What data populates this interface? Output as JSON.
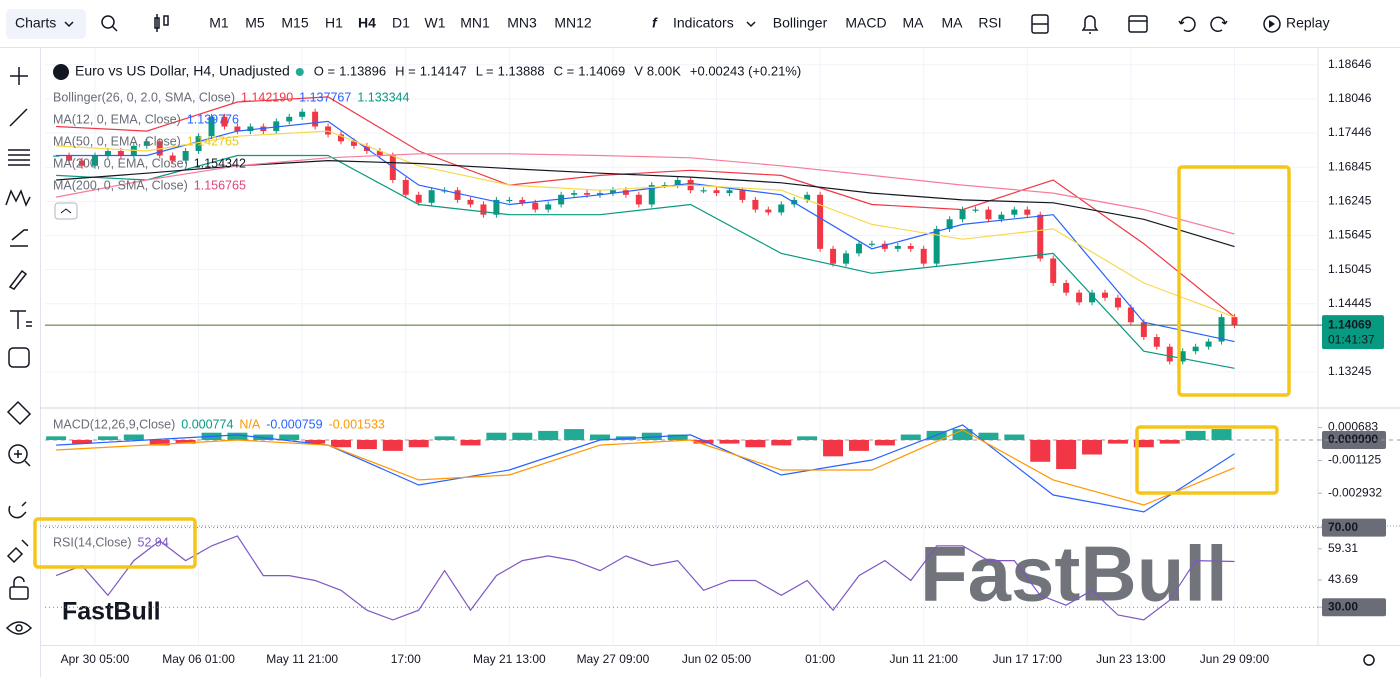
{
  "toolbar": {
    "charts": "Charts",
    "timeframes": [
      "M1",
      "M5",
      "M15",
      "H1",
      "H4",
      "D1",
      "W1",
      "MN1",
      "MN3",
      "MN12"
    ],
    "selected_timeframe_index": 4,
    "indicators": "Indicators",
    "shortcuts": [
      "Bollinger",
      "MACD",
      "MA",
      "MA",
      "RSI"
    ],
    "replay": "Replay"
  },
  "legend": {
    "badge": "FB",
    "symbol": "Euro vs US Dollar, H4, Unadjusted",
    "ohlc": [
      {
        "label": "O =",
        "value": "1.13896"
      },
      {
        "label": "H =",
        "value": "1.14147"
      },
      {
        "label": "L =",
        "value": "1.13888"
      },
      {
        "label": "C =",
        "value": "1.14069"
      },
      {
        "label": "V",
        "value": "8.00K"
      }
    ],
    "change": "+0.00243 (+0.21%)"
  },
  "indicators": [
    {
      "label": "Bollinger(26, 0, 2.0, SMA, Close)",
      "values": [
        "1.142190",
        "1.137767",
        "1.133344"
      ],
      "colors": [
        "#f23645",
        "#2962ff",
        "#089981"
      ]
    },
    {
      "label": "MA(12, 0, EMA, Close)",
      "values": [
        "1.139776"
      ],
      "colors": [
        "#2962ff"
      ]
    },
    {
      "label": "MA(50, 0, EMA, Close)",
      "values": [
        "1.142765"
      ],
      "colors": [
        "#e8c81a"
      ]
    },
    {
      "label": "MA(200, 0, EMA, Close)",
      "values": [
        "1.154342"
      ],
      "colors": [
        "#131722"
      ]
    },
    {
      "label": "MA(200, 0, SMA, Close)",
      "values": [
        "1.156765"
      ],
      "colors": [
        "#e0457b"
      ]
    },
    {
      "label": "MACD(12,26,9,Close)",
      "values": [
        "0.000774",
        "N/A",
        "-0.000759",
        "-0.001533"
      ],
      "colors": [
        "#089981",
        "#ff9800",
        "#2962ff",
        "#ff9800"
      ]
    },
    {
      "label": "RSI(14,Close)",
      "values": [
        "52.94"
      ],
      "colors": [
        "#7e57c2"
      ]
    }
  ],
  "watermark": "FastBull",
  "chart_data": [
    {
      "type": "candlestick",
      "up_color": "#089981",
      "down_color": "#f23645",
      "closes": [
        1.1705,
        1.1696,
        1.1687,
        1.1705,
        1.1713,
        1.1705,
        1.1722,
        1.173,
        1.1705,
        1.1696,
        1.1713,
        1.1739,
        1.1773,
        1.1756,
        1.1748,
        1.1756,
        1.1748,
        1.1765,
        1.1773,
        1.1782,
        1.1756,
        1.1742,
        1.173,
        1.1722,
        1.1713,
        1.1705,
        1.1662,
        1.1636,
        1.1622,
        1.1644,
        1.1644,
        1.1627,
        1.1619,
        1.1601,
        1.1627,
        1.1627,
        1.1622,
        1.161,
        1.1619,
        1.1636,
        1.1639,
        1.1636,
        1.1639,
        1.1644,
        1.1636,
        1.1619,
        1.1653,
        1.1653,
        1.1662,
        1.1644,
        1.1644,
        1.1639,
        1.1644,
        1.1627,
        1.161,
        1.1605,
        1.1619,
        1.1627,
        1.1636,
        1.1541,
        1.1515,
        1.1533,
        1.155,
        1.155,
        1.1541,
        1.1546,
        1.1541,
        1.1515,
        1.1576,
        1.1593,
        1.161,
        1.161,
        1.1593,
        1.1601,
        1.161,
        1.1601,
        1.1524,
        1.1481,
        1.1464,
        1.1447,
        1.1464,
        1.1455,
        1.1438,
        1.1412,
        1.1386,
        1.1369,
        1.1343,
        1.1361,
        1.1369,
        1.1378,
        1.1421,
        1.14069
      ],
      "xlim": [
        -0.86,
        97.45
      ],
      "xticks": [
        {
          "value": 3,
          "label": "Apr 30 05:00"
        },
        {
          "value": 11,
          "label": "May 06 01:00"
        },
        {
          "value": 19,
          "label": "May 11 21:00"
        },
        {
          "value": 27,
          "label": "17:00"
        },
        {
          "value": 35,
          "label": "May 21 13:00"
        },
        {
          "value": 43,
          "label": "May 27 09:00"
        },
        {
          "value": 51,
          "label": "Jun 02 05:00"
        },
        {
          "value": 59,
          "label": "01:00"
        },
        {
          "value": 67,
          "label": "Jun 11 21:00"
        },
        {
          "value": 75,
          "label": "Jun 17 17:00"
        },
        {
          "value": 83,
          "label": "Jun 23 13:00"
        },
        {
          "value": 91,
          "label": "Jun 29 09:00"
        }
      ],
      "ylim": [
        1.1263,
        1.1894
      ],
      "yticks": [
        1.18646,
        1.18046,
        1.17446,
        1.16845,
        1.16245,
        1.15645,
        1.15045,
        1.14445,
        1.13245
      ],
      "last_price": 1.14069,
      "countdown": "01:41:37",
      "series": [
        {
          "color": "#f23645",
          "x": [
            0,
            7,
            14,
            21,
            28,
            35,
            42,
            49,
            56,
            63,
            70,
            77,
            84,
            91
          ],
          "values": [
            1.1756,
            1.1748,
            1.1799,
            1.1808,
            1.1713,
            1.1653,
            1.167,
            1.1679,
            1.167,
            1.1619,
            1.161,
            1.1662,
            1.155,
            1.1421
          ]
        },
        {
          "color": "#089981",
          "x": [
            0,
            7,
            14,
            21,
            28,
            35,
            42,
            49,
            56,
            63,
            70,
            77,
            84,
            91
          ],
          "values": [
            1.167,
            1.1662,
            1.1705,
            1.1705,
            1.1619,
            1.1601,
            1.1601,
            1.1619,
            1.1533,
            1.1498,
            1.1515,
            1.1533,
            1.1361,
            1.1331
          ]
        },
        {
          "color": "#2962ff",
          "x": [
            0,
            7,
            14,
            21,
            28,
            35,
            42,
            49,
            56,
            63,
            70,
            77,
            84,
            91
          ],
          "values": [
            1.1705,
            1.1705,
            1.1748,
            1.1765,
            1.1653,
            1.1619,
            1.1636,
            1.1656,
            1.1636,
            1.1541,
            1.1584,
            1.1601,
            1.1412,
            1.1378
          ]
        },
        {
          "color": "#f7d94c",
          "x": [
            0,
            7,
            14,
            21,
            28,
            35,
            42,
            49,
            56,
            63,
            70,
            77,
            84,
            91
          ],
          "values": [
            1.1722,
            1.1713,
            1.1739,
            1.1748,
            1.1687,
            1.1653,
            1.1644,
            1.1653,
            1.1644,
            1.1584,
            1.1558,
            1.1576,
            1.1481,
            1.1421
          ]
        },
        {
          "color": "#131722",
          "x": [
            0,
            7,
            14,
            21,
            28,
            35,
            42,
            49,
            56,
            63,
            70,
            77,
            84,
            91
          ],
          "values": [
            1.1662,
            1.1674,
            1.1687,
            1.1696,
            1.1691,
            1.1682,
            1.1674,
            1.1667,
            1.1657,
            1.1639,
            1.1627,
            1.1622,
            1.1593,
            1.1545
          ]
        },
        {
          "color": "#f77c9a",
          "x": [
            0,
            7,
            14,
            21,
            28,
            35,
            42,
            49,
            56,
            63,
            70,
            77,
            84,
            91
          ],
          "values": [
            1.1632,
            1.1662,
            1.1687,
            1.1701,
            1.1708,
            1.1708,
            1.1705,
            1.1701,
            1.1687,
            1.167,
            1.1653,
            1.1639,
            1.161,
            1.1567
          ]
        }
      ]
    },
    {
      "type": "bar",
      "up_color": "#22ab94",
      "down_color": "#f23645",
      "x": [
        0,
        2,
        4,
        6,
        8,
        10,
        12,
        14,
        16,
        18,
        20,
        22,
        24,
        26,
        28,
        30,
        32,
        34,
        36,
        38,
        40,
        42,
        44,
        46,
        48,
        50,
        52,
        54,
        56,
        58,
        60,
        62,
        64,
        66,
        68,
        70,
        72,
        74,
        76,
        78,
        80,
        82,
        84,
        86,
        88,
        90
      ],
      "values": [
        0.0002,
        -0.0002,
        0.0002,
        0.0003,
        -0.0003,
        -0.0002,
        0.0004,
        0.0004,
        0.0003,
        0.0003,
        -0.0002,
        -0.0004,
        -0.0005,
        -0.0006,
        -0.0004,
        0.0002,
        -0.0003,
        0.0004,
        0.0004,
        0.0005,
        0.0006,
        0.0003,
        0.0002,
        0.0004,
        0.0003,
        -0.0002,
        -0.0002,
        -0.0004,
        -0.0003,
        0.0002,
        -0.0009,
        -0.0006,
        -0.0003,
        0.0003,
        0.0005,
        0.0006,
        0.0004,
        0.0003,
        -0.0012,
        -0.0016,
        -0.0008,
        -0.0002,
        -0.0004,
        -0.0002,
        0.0005,
        0.0006
      ],
      "ylim": [
        -0.00468,
        0.00165
      ],
      "yticks": [
        0.000683,
        {
          "value": 0,
          "label": "0.000000"
        },
        -0.001125,
        -0.002932
      ],
      "zero_line": true,
      "series": [
        {
          "color": "#2962ff",
          "x": [
            0,
            7,
            14,
            21,
            28,
            35,
            42,
            49,
            56,
            63,
            70,
            77,
            84,
            91
          ],
          "values": [
            -0.00028,
            0,
            0.00028,
            -0.00028,
            -0.00248,
            -0.00165,
            0,
            0.00028,
            -0.00193,
            -0.0011,
            0.00083,
            -0.00303,
            -0.00396,
            -0.000759
          ]
        },
        {
          "color": "#ff9800",
          "x": [
            0,
            7,
            14,
            21,
            28,
            35,
            42,
            49,
            56,
            63,
            70,
            77,
            84,
            91
          ],
          "values": [
            -0.00055,
            -0.00028,
            0,
            -0.00028,
            -0.0022,
            -0.00193,
            -0.00028,
            0,
            -0.00165,
            -0.00165,
            0.00055,
            -0.0022,
            -0.00358,
            -0.001533
          ]
        }
      ]
    },
    {
      "type": "line",
      "ylim": [
        11,
        70.3
      ],
      "yticks": [
        {
          "value": 70,
          "label": "70.00"
        },
        59.31,
        43.69,
        {
          "value": 30,
          "label": "30.00"
        }
      ],
      "levels": [
        70,
        30
      ],
      "series": [
        {
          "color": "#7e57c2",
          "x": [
            0,
            2,
            4,
            6,
            8,
            10,
            12,
            14,
            16,
            18,
            20,
            22,
            24,
            26,
            28,
            30,
            32,
            34,
            36,
            38,
            40,
            42,
            44,
            46,
            48,
            50,
            52,
            54,
            56,
            58,
            60,
            62,
            64,
            66,
            68,
            70,
            72,
            74,
            76,
            78,
            80,
            82,
            84,
            86,
            88,
            91
          ],
          "values": [
            45.9,
            50.9,
            36.0,
            53.4,
            63.3,
            53.4,
            60.8,
            65.8,
            45.9,
            45.9,
            43.4,
            38.5,
            28.5,
            23.6,
            28.5,
            48.4,
            28.5,
            45.9,
            53.4,
            55.8,
            53.4,
            48.4,
            55.8,
            50.9,
            53.4,
            38.5,
            43.4,
            43.4,
            36.0,
            43.4,
            28.5,
            45.9,
            53.4,
            43.4,
            60.8,
            60.8,
            53.4,
            53.4,
            36.0,
            31.0,
            38.5,
            26.1,
            23.6,
            33.5,
            53.4,
            52.94
          ]
        }
      ]
    }
  ]
}
